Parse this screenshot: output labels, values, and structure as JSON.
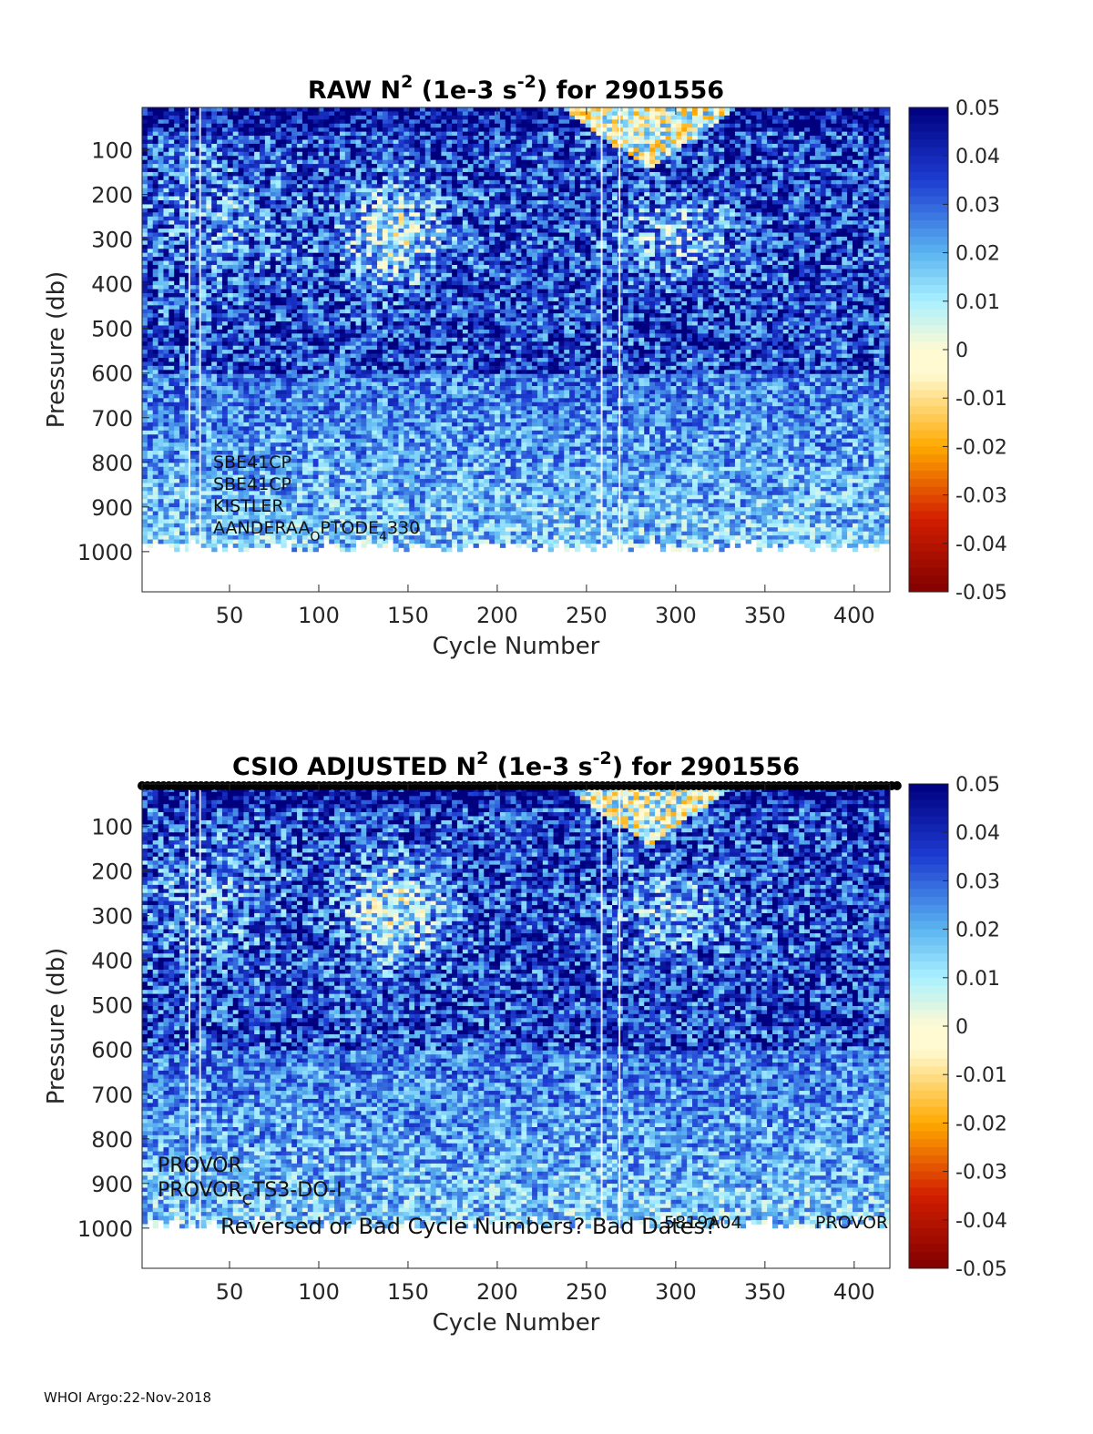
{
  "chart_data": [
    {
      "type": "heatmap",
      "title": "RAW N² (1e-3 s⁻²) for 2901556",
      "title_parts": {
        "prefix": "RAW N",
        "exp1": "2",
        "mid": " (1e-3 s",
        "exp2": "-2",
        "suffix": ") for 2901556"
      },
      "xlabel": "Cycle Number",
      "ylabel": "Pressure (db)",
      "xlim": [
        1,
        420
      ],
      "ylim": [
        1090,
        5
      ],
      "xticks": [
        50,
        100,
        150,
        200,
        250,
        300,
        350,
        400
      ],
      "yticks": [
        100,
        200,
        300,
        400,
        500,
        600,
        700,
        800,
        900,
        1000
      ],
      "colorbar": {
        "range": [
          -0.05,
          0.05
        ],
        "ticks": [
          "0.05",
          "0.04",
          "0.03",
          "0.02",
          "0.01",
          "0",
          "-0.01",
          "-0.02",
          "-0.03",
          "-0.04",
          "-0.05"
        ]
      },
      "annotations": [
        {
          "text": "SBE41CP"
        },
        {
          "text": "SBE41CP"
        },
        {
          "text": "KISTLER"
        },
        {
          "text": "AANDERAA_OPTODE_4330",
          "parts": [
            "AANDERAA",
            "O",
            "PTODE",
            "4",
            "330"
          ]
        }
      ]
    },
    {
      "type": "heatmap",
      "title": "CSIO  ADJUSTED N² (1e-3 s⁻²) for 2901556",
      "title_parts": {
        "prefix": "CSIO  ADJUSTED N",
        "exp1": "2",
        "mid": " (1e-3 s",
        "exp2": "-2",
        "suffix": ") for 2901556"
      },
      "xlabel": "Cycle Number",
      "ylabel": "Pressure (db)",
      "xlim": [
        1,
        420
      ],
      "ylim": [
        1090,
        5
      ],
      "xticks": [
        50,
        100,
        150,
        200,
        250,
        300,
        350,
        400
      ],
      "yticks": [
        100,
        200,
        300,
        400,
        500,
        600,
        700,
        800,
        900,
        1000
      ],
      "colorbar": {
        "range": [
          -0.05,
          0.05
        ],
        "ticks": [
          "0.05",
          "0.04",
          "0.03",
          "0.02",
          "0.01",
          "0",
          "-0.01",
          "-0.02",
          "-0.03",
          "-0.04",
          "-0.05"
        ]
      },
      "annotations": [
        {
          "text": "PROVOR"
        },
        {
          "text": "PROVOR_CTS3-DO-I",
          "parts": [
            "PROVOR",
            "C",
            "TS3-DO-I"
          ]
        },
        {
          "text": "Reversed or Bad Cycle Numbers? Bad Dates?"
        },
        {
          "text": "5819A04"
        },
        {
          "text": "PROVOR"
        }
      ]
    }
  ],
  "footer": "WHOI Argo:22-Nov-2018",
  "colors": {
    "deep_blue": "#00007f",
    "blue": "#1e3cd2",
    "light_blue": "#5ab4f0",
    "cyan": "#aaf0ff",
    "cream": "#fffad2",
    "orange": "#ffaa00",
    "red": "#d21e00",
    "dark_red": "#800000"
  }
}
